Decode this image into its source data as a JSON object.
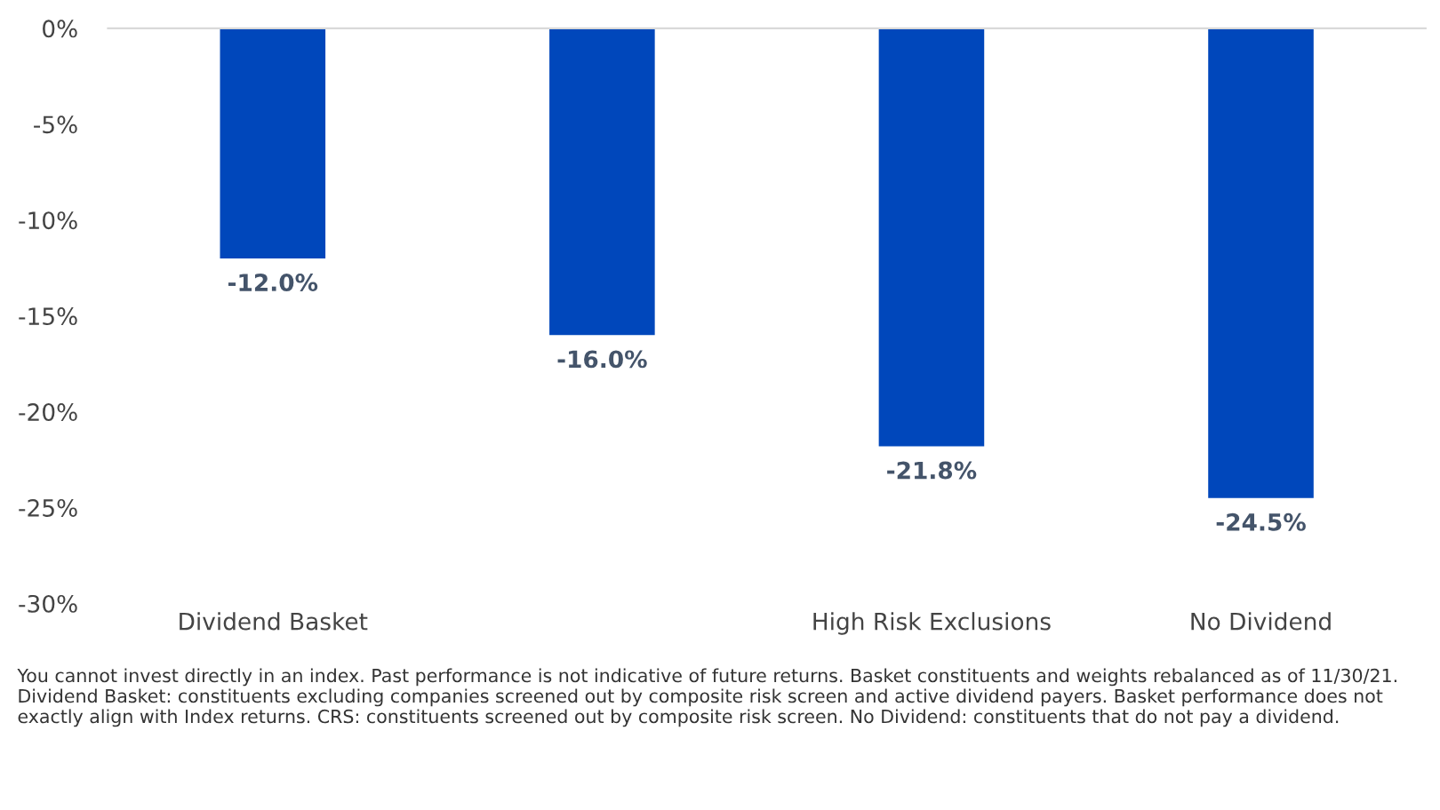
{
  "chart_data": {
    "type": "bar",
    "categories": [
      "Dividend Basket",
      null,
      "High Risk Exclusions",
      "No Dividend"
    ],
    "values": [
      -12.0,
      -16.0,
      -21.8,
      -24.5
    ],
    "value_labels": [
      "-12.0%",
      "-16.0%",
      "-21.8%",
      "-24.5%"
    ],
    "color": "#0047bb",
    "ylim": [
      -30,
      0
    ],
    "yticks": [
      {
        "value": 0,
        "label": "0%"
      },
      {
        "value": -5,
        "label": "-5%"
      },
      {
        "value": -10,
        "label": "-10%"
      },
      {
        "value": -15,
        "label": "-15%"
      },
      {
        "value": -20,
        "label": "-20%"
      },
      {
        "value": -25,
        "label": "-25%"
      },
      {
        "value": -30,
        "label": "-30%"
      }
    ],
    "grid": false,
    "annotations": [
      "You cannot invest directly in an index. Past performance is not indicative of future returns. Basket constituents and weights rebalanced as of 11/30/21. Dividend Basket: constituents excluding companies screened out by composite risk screen and active dividend payers. Basket performance does not exactly align with Index returns. CRS: constituents screened out by composite risk screen. No Dividend: constituents that do not pay a dividend."
    ]
  }
}
